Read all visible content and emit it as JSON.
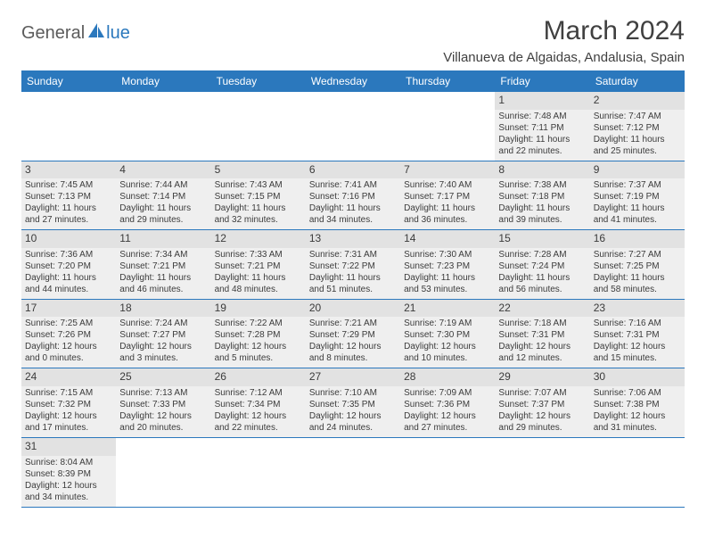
{
  "logo": {
    "part1": "General",
    "part2": "lue"
  },
  "title": "March 2024",
  "location": "Villanueva de Algaidas, Andalusia, Spain",
  "weekdays": [
    "Sunday",
    "Monday",
    "Tuesday",
    "Wednesday",
    "Thursday",
    "Friday",
    "Saturday"
  ],
  "colors": {
    "header_bg": "#2b78bd",
    "header_text": "#ffffff",
    "cell_border": "#2b78bd",
    "filled_bg": "#efefef",
    "daynum_bg": "#e2e2e2",
    "text": "#3b3b3b",
    "title_text": "#404040"
  },
  "weeks": [
    [
      null,
      null,
      null,
      null,
      null,
      {
        "n": "1",
        "sr": "Sunrise: 7:48 AM",
        "ss": "Sunset: 7:11 PM",
        "d1": "Daylight: 11 hours",
        "d2": "and 22 minutes."
      },
      {
        "n": "2",
        "sr": "Sunrise: 7:47 AM",
        "ss": "Sunset: 7:12 PM",
        "d1": "Daylight: 11 hours",
        "d2": "and 25 minutes."
      }
    ],
    [
      {
        "n": "3",
        "sr": "Sunrise: 7:45 AM",
        "ss": "Sunset: 7:13 PM",
        "d1": "Daylight: 11 hours",
        "d2": "and 27 minutes."
      },
      {
        "n": "4",
        "sr": "Sunrise: 7:44 AM",
        "ss": "Sunset: 7:14 PM",
        "d1": "Daylight: 11 hours",
        "d2": "and 29 minutes."
      },
      {
        "n": "5",
        "sr": "Sunrise: 7:43 AM",
        "ss": "Sunset: 7:15 PM",
        "d1": "Daylight: 11 hours",
        "d2": "and 32 minutes."
      },
      {
        "n": "6",
        "sr": "Sunrise: 7:41 AM",
        "ss": "Sunset: 7:16 PM",
        "d1": "Daylight: 11 hours",
        "d2": "and 34 minutes."
      },
      {
        "n": "7",
        "sr": "Sunrise: 7:40 AM",
        "ss": "Sunset: 7:17 PM",
        "d1": "Daylight: 11 hours",
        "d2": "and 36 minutes."
      },
      {
        "n": "8",
        "sr": "Sunrise: 7:38 AM",
        "ss": "Sunset: 7:18 PM",
        "d1": "Daylight: 11 hours",
        "d2": "and 39 minutes."
      },
      {
        "n": "9",
        "sr": "Sunrise: 7:37 AM",
        "ss": "Sunset: 7:19 PM",
        "d1": "Daylight: 11 hours",
        "d2": "and 41 minutes."
      }
    ],
    [
      {
        "n": "10",
        "sr": "Sunrise: 7:36 AM",
        "ss": "Sunset: 7:20 PM",
        "d1": "Daylight: 11 hours",
        "d2": "and 44 minutes."
      },
      {
        "n": "11",
        "sr": "Sunrise: 7:34 AM",
        "ss": "Sunset: 7:21 PM",
        "d1": "Daylight: 11 hours",
        "d2": "and 46 minutes."
      },
      {
        "n": "12",
        "sr": "Sunrise: 7:33 AM",
        "ss": "Sunset: 7:21 PM",
        "d1": "Daylight: 11 hours",
        "d2": "and 48 minutes."
      },
      {
        "n": "13",
        "sr": "Sunrise: 7:31 AM",
        "ss": "Sunset: 7:22 PM",
        "d1": "Daylight: 11 hours",
        "d2": "and 51 minutes."
      },
      {
        "n": "14",
        "sr": "Sunrise: 7:30 AM",
        "ss": "Sunset: 7:23 PM",
        "d1": "Daylight: 11 hours",
        "d2": "and 53 minutes."
      },
      {
        "n": "15",
        "sr": "Sunrise: 7:28 AM",
        "ss": "Sunset: 7:24 PM",
        "d1": "Daylight: 11 hours",
        "d2": "and 56 minutes."
      },
      {
        "n": "16",
        "sr": "Sunrise: 7:27 AM",
        "ss": "Sunset: 7:25 PM",
        "d1": "Daylight: 11 hours",
        "d2": "and 58 minutes."
      }
    ],
    [
      {
        "n": "17",
        "sr": "Sunrise: 7:25 AM",
        "ss": "Sunset: 7:26 PM",
        "d1": "Daylight: 12 hours",
        "d2": "and 0 minutes."
      },
      {
        "n": "18",
        "sr": "Sunrise: 7:24 AM",
        "ss": "Sunset: 7:27 PM",
        "d1": "Daylight: 12 hours",
        "d2": "and 3 minutes."
      },
      {
        "n": "19",
        "sr": "Sunrise: 7:22 AM",
        "ss": "Sunset: 7:28 PM",
        "d1": "Daylight: 12 hours",
        "d2": "and 5 minutes."
      },
      {
        "n": "20",
        "sr": "Sunrise: 7:21 AM",
        "ss": "Sunset: 7:29 PM",
        "d1": "Daylight: 12 hours",
        "d2": "and 8 minutes."
      },
      {
        "n": "21",
        "sr": "Sunrise: 7:19 AM",
        "ss": "Sunset: 7:30 PM",
        "d1": "Daylight: 12 hours",
        "d2": "and 10 minutes."
      },
      {
        "n": "22",
        "sr": "Sunrise: 7:18 AM",
        "ss": "Sunset: 7:31 PM",
        "d1": "Daylight: 12 hours",
        "d2": "and 12 minutes."
      },
      {
        "n": "23",
        "sr": "Sunrise: 7:16 AM",
        "ss": "Sunset: 7:31 PM",
        "d1": "Daylight: 12 hours",
        "d2": "and 15 minutes."
      }
    ],
    [
      {
        "n": "24",
        "sr": "Sunrise: 7:15 AM",
        "ss": "Sunset: 7:32 PM",
        "d1": "Daylight: 12 hours",
        "d2": "and 17 minutes."
      },
      {
        "n": "25",
        "sr": "Sunrise: 7:13 AM",
        "ss": "Sunset: 7:33 PM",
        "d1": "Daylight: 12 hours",
        "d2": "and 20 minutes."
      },
      {
        "n": "26",
        "sr": "Sunrise: 7:12 AM",
        "ss": "Sunset: 7:34 PM",
        "d1": "Daylight: 12 hours",
        "d2": "and 22 minutes."
      },
      {
        "n": "27",
        "sr": "Sunrise: 7:10 AM",
        "ss": "Sunset: 7:35 PM",
        "d1": "Daylight: 12 hours",
        "d2": "and 24 minutes."
      },
      {
        "n": "28",
        "sr": "Sunrise: 7:09 AM",
        "ss": "Sunset: 7:36 PM",
        "d1": "Daylight: 12 hours",
        "d2": "and 27 minutes."
      },
      {
        "n": "29",
        "sr": "Sunrise: 7:07 AM",
        "ss": "Sunset: 7:37 PM",
        "d1": "Daylight: 12 hours",
        "d2": "and 29 minutes."
      },
      {
        "n": "30",
        "sr": "Sunrise: 7:06 AM",
        "ss": "Sunset: 7:38 PM",
        "d1": "Daylight: 12 hours",
        "d2": "and 31 minutes."
      }
    ],
    [
      {
        "n": "31",
        "sr": "Sunrise: 8:04 AM",
        "ss": "Sunset: 8:39 PM",
        "d1": "Daylight: 12 hours",
        "d2": "and 34 minutes."
      },
      null,
      null,
      null,
      null,
      null,
      null
    ]
  ]
}
